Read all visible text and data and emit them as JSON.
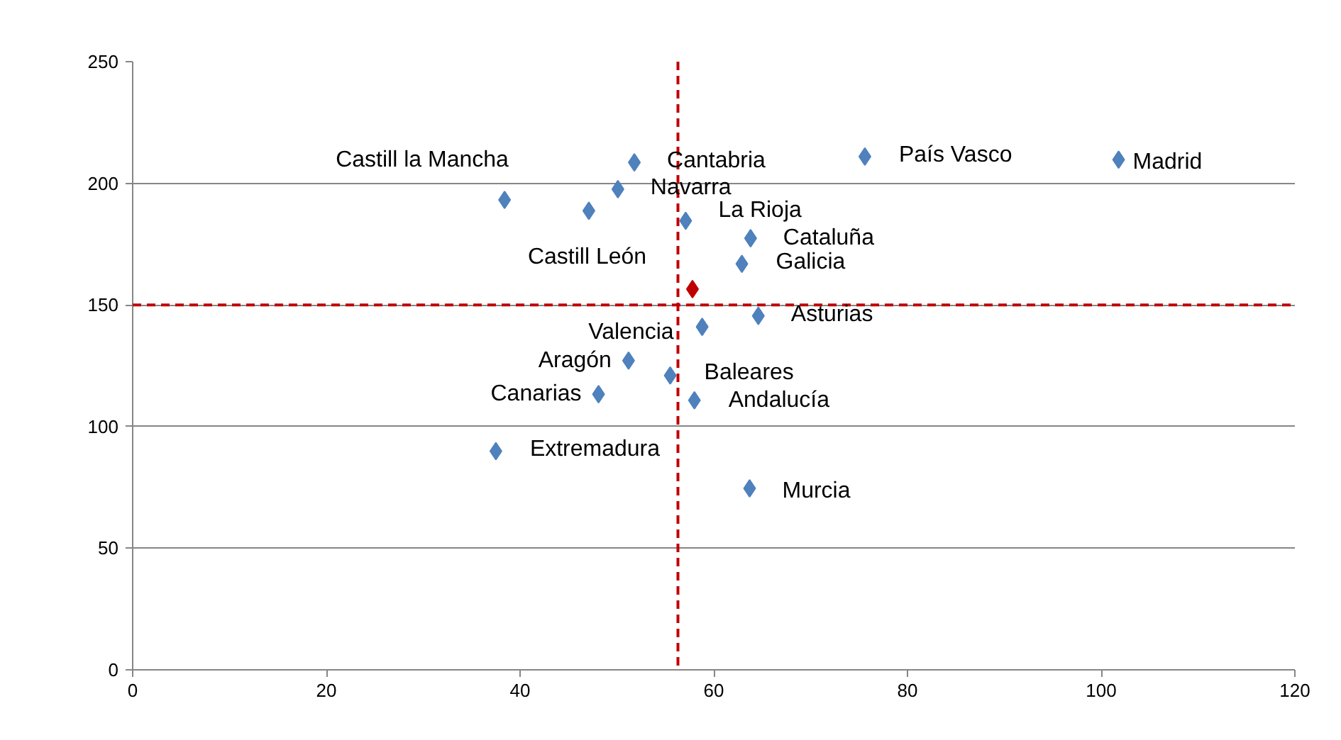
{
  "chart_data": {
    "type": "scatter",
    "marker": "diamond",
    "grid": "y",
    "xlim": [
      0,
      120
    ],
    "ylim": [
      0,
      250
    ],
    "xticks": [
      0,
      20,
      40,
      60,
      80,
      100,
      120
    ],
    "yticks": [
      0,
      50,
      100,
      150,
      200,
      250
    ],
    "series": [
      {
        "color": "#4f81bd",
        "x": [
          38.4,
          51.8,
          47.1,
          50.1,
          57.1,
          63.8,
          62.9,
          58.8,
          64.6,
          51.2,
          55.5,
          48.1,
          58.0,
          37.5,
          63.7,
          75.6,
          101.8
        ],
        "values": [
          193.2,
          208.6,
          188.7,
          197.6,
          184.6,
          177.4,
          166.9,
          141.0,
          145.5,
          127.1,
          121.0,
          113.3,
          110.8,
          89.9,
          74.6,
          211.0,
          209.7
        ],
        "value_labels": [
          "Castill la Mancha",
          "Cantabria",
          "Castill León",
          "Navarra",
          "La Rioja",
          "Cataluña",
          "Galicia",
          "Valencia",
          "Asturias",
          "Aragón",
          "Baleares",
          "Canarias",
          "Andalucía",
          "Extremadura",
          "Murcia",
          "País Vasco",
          "Madrid"
        ]
      },
      {
        "color": "#c00000",
        "x": [
          57.8
        ],
        "values": [
          156.5
        ]
      }
    ],
    "ref_lines": [
      {
        "axis": "x",
        "value": 56.3,
        "color": "#c00000",
        "line_style": "dashed"
      },
      {
        "axis": "y",
        "value": 150,
        "color": "#c00000",
        "line_style": "dashed"
      }
    ]
  }
}
